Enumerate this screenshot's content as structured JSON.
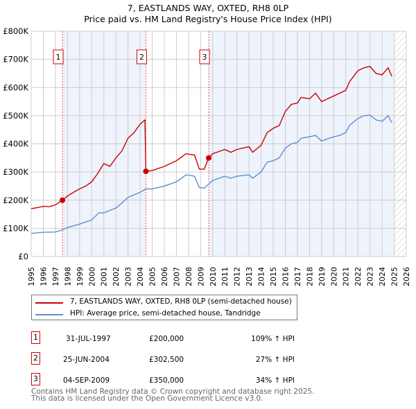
{
  "chart_data": {
    "type": "line",
    "title": "7, EASTLANDS WAY, OXTED, RH8 0LP",
    "subtitle": "Price paid vs. HM Land Registry's House Price Index (HPI)",
    "xlim": [
      1995,
      2026
    ],
    "ylim": [
      0,
      800000
    ],
    "x_ticks": [
      "1995",
      "1996",
      "1997",
      "1998",
      "1999",
      "2000",
      "2001",
      "2002",
      "2003",
      "2004",
      "2005",
      "2006",
      "2007",
      "2008",
      "2009",
      "2010",
      "2011",
      "2012",
      "2013",
      "2014",
      "2015",
      "2016",
      "2017",
      "2018",
      "2019",
      "2020",
      "2021",
      "2022",
      "2023",
      "2024",
      "2025",
      "2026"
    ],
    "y_ticks": [
      {
        "v": 0,
        "label": "£0"
      },
      {
        "v": 100000,
        "label": "£100K"
      },
      {
        "v": 200000,
        "label": "£200K"
      },
      {
        "v": 300000,
        "label": "£300K"
      },
      {
        "v": 400000,
        "label": "£400K"
      },
      {
        "v": 500000,
        "label": "£500K"
      },
      {
        "v": 600000,
        "label": "£600K"
      },
      {
        "v": 700000,
        "label": "£700K"
      },
      {
        "v": 800000,
        "label": "£800K"
      }
    ],
    "grid": true,
    "shaded_ranges": [
      [
        1997.58,
        2004.48
      ],
      [
        2009.67,
        2025.0
      ]
    ],
    "hatched_from": 2025.0,
    "series": [
      {
        "name": "7, EASTLANDS WAY, OXTED, RH8 0LP (semi-detached house)",
        "color": "#cc0000",
        "x": [
          1995,
          1995.3,
          1996,
          1996.5,
          1997,
          1997.58,
          1998,
          1998.5,
          1999,
          1999.5,
          2000,
          2000.5,
          2001,
          2001.5,
          2002,
          2002.5,
          2003,
          2003.5,
          2004,
          2004.4,
          2004.48,
          2005,
          2006,
          2007,
          2007.8,
          2008.5,
          2008.9,
          2009.3,
          2009.67,
          2010,
          2011,
          2011.5,
          2012,
          2013,
          2013.3,
          2014,
          2014.5,
          2015,
          2015.5,
          2016,
          2016.5,
          2017,
          2017.3,
          2018,
          2018.5,
          2019,
          2019.5,
          2020,
          2020.5,
          2021,
          2021.3,
          2022,
          2022.5,
          2023,
          2023.5,
          2024,
          2024.5,
          2024.8
        ],
        "y": [
          170000,
          172000,
          178000,
          177000,
          183000,
          200000,
          215000,
          228000,
          240000,
          250000,
          265000,
          295000,
          330000,
          320000,
          350000,
          375000,
          420000,
          440000,
          470000,
          485000,
          302500,
          305000,
          320000,
          340000,
          365000,
          360000,
          310000,
          310000,
          350000,
          365000,
          380000,
          370000,
          380000,
          390000,
          370000,
          395000,
          440000,
          455000,
          465000,
          515000,
          540000,
          545000,
          565000,
          560000,
          580000,
          550000,
          560000,
          570000,
          580000,
          590000,
          620000,
          660000,
          670000,
          675000,
          650000,
          645000,
          670000,
          640000
        ]
      },
      {
        "name": "HPI: Average price, semi-detached house, Tandridge",
        "color": "#5b8fd4",
        "x": [
          1995,
          1996,
          1997,
          1997.6,
          1998,
          1999,
          2000,
          2000.6,
          2001,
          2002,
          2002.5,
          2003,
          2004,
          2004.5,
          2005,
          2006,
          2007,
          2007.8,
          2008.5,
          2008.9,
          2009.3,
          2010,
          2011,
          2011.5,
          2012,
          2013,
          2013.3,
          2014,
          2014.5,
          2015,
          2015.5,
          2016,
          2016.5,
          2017,
          2017.3,
          2018,
          2018.5,
          2019,
          2019.5,
          2020,
          2020.5,
          2021,
          2021.3,
          2022,
          2022.5,
          2023,
          2023.5,
          2024,
          2024.5,
          2024.8
        ],
        "y": [
          82000,
          86000,
          87000,
          95000,
          103000,
          115000,
          130000,
          155000,
          155000,
          172000,
          190000,
          210000,
          228000,
          240000,
          240000,
          250000,
          265000,
          290000,
          285000,
          245000,
          243000,
          270000,
          285000,
          278000,
          285000,
          290000,
          278000,
          300000,
          335000,
          340000,
          350000,
          385000,
          400000,
          405000,
          420000,
          425000,
          430000,
          410000,
          418000,
          425000,
          430000,
          440000,
          465000,
          490000,
          500000,
          502000,
          485000,
          480000,
          500000,
          475000
        ]
      }
    ],
    "sales": [
      {
        "n": "1",
        "x": 1997.58,
        "price": 200000,
        "date": "31-JUL-1997",
        "price_label": "£200,000",
        "hpi": "109% ↑ HPI"
      },
      {
        "n": "2",
        "x": 2004.48,
        "price": 302500,
        "date": "25-JUN-2004",
        "price_label": "£302,500",
        "hpi": "27% ↑ HPI"
      },
      {
        "n": "3",
        "x": 2009.67,
        "price": 350000,
        "date": "04-SEP-2009",
        "price_label": "£350,000",
        "hpi": "34% ↑ HPI"
      }
    ]
  },
  "footer": {
    "line1": "Contains HM Land Registry data © Crown copyright and database right 2025.",
    "line2": "This data is licensed under the Open Government Licence v3.0."
  }
}
